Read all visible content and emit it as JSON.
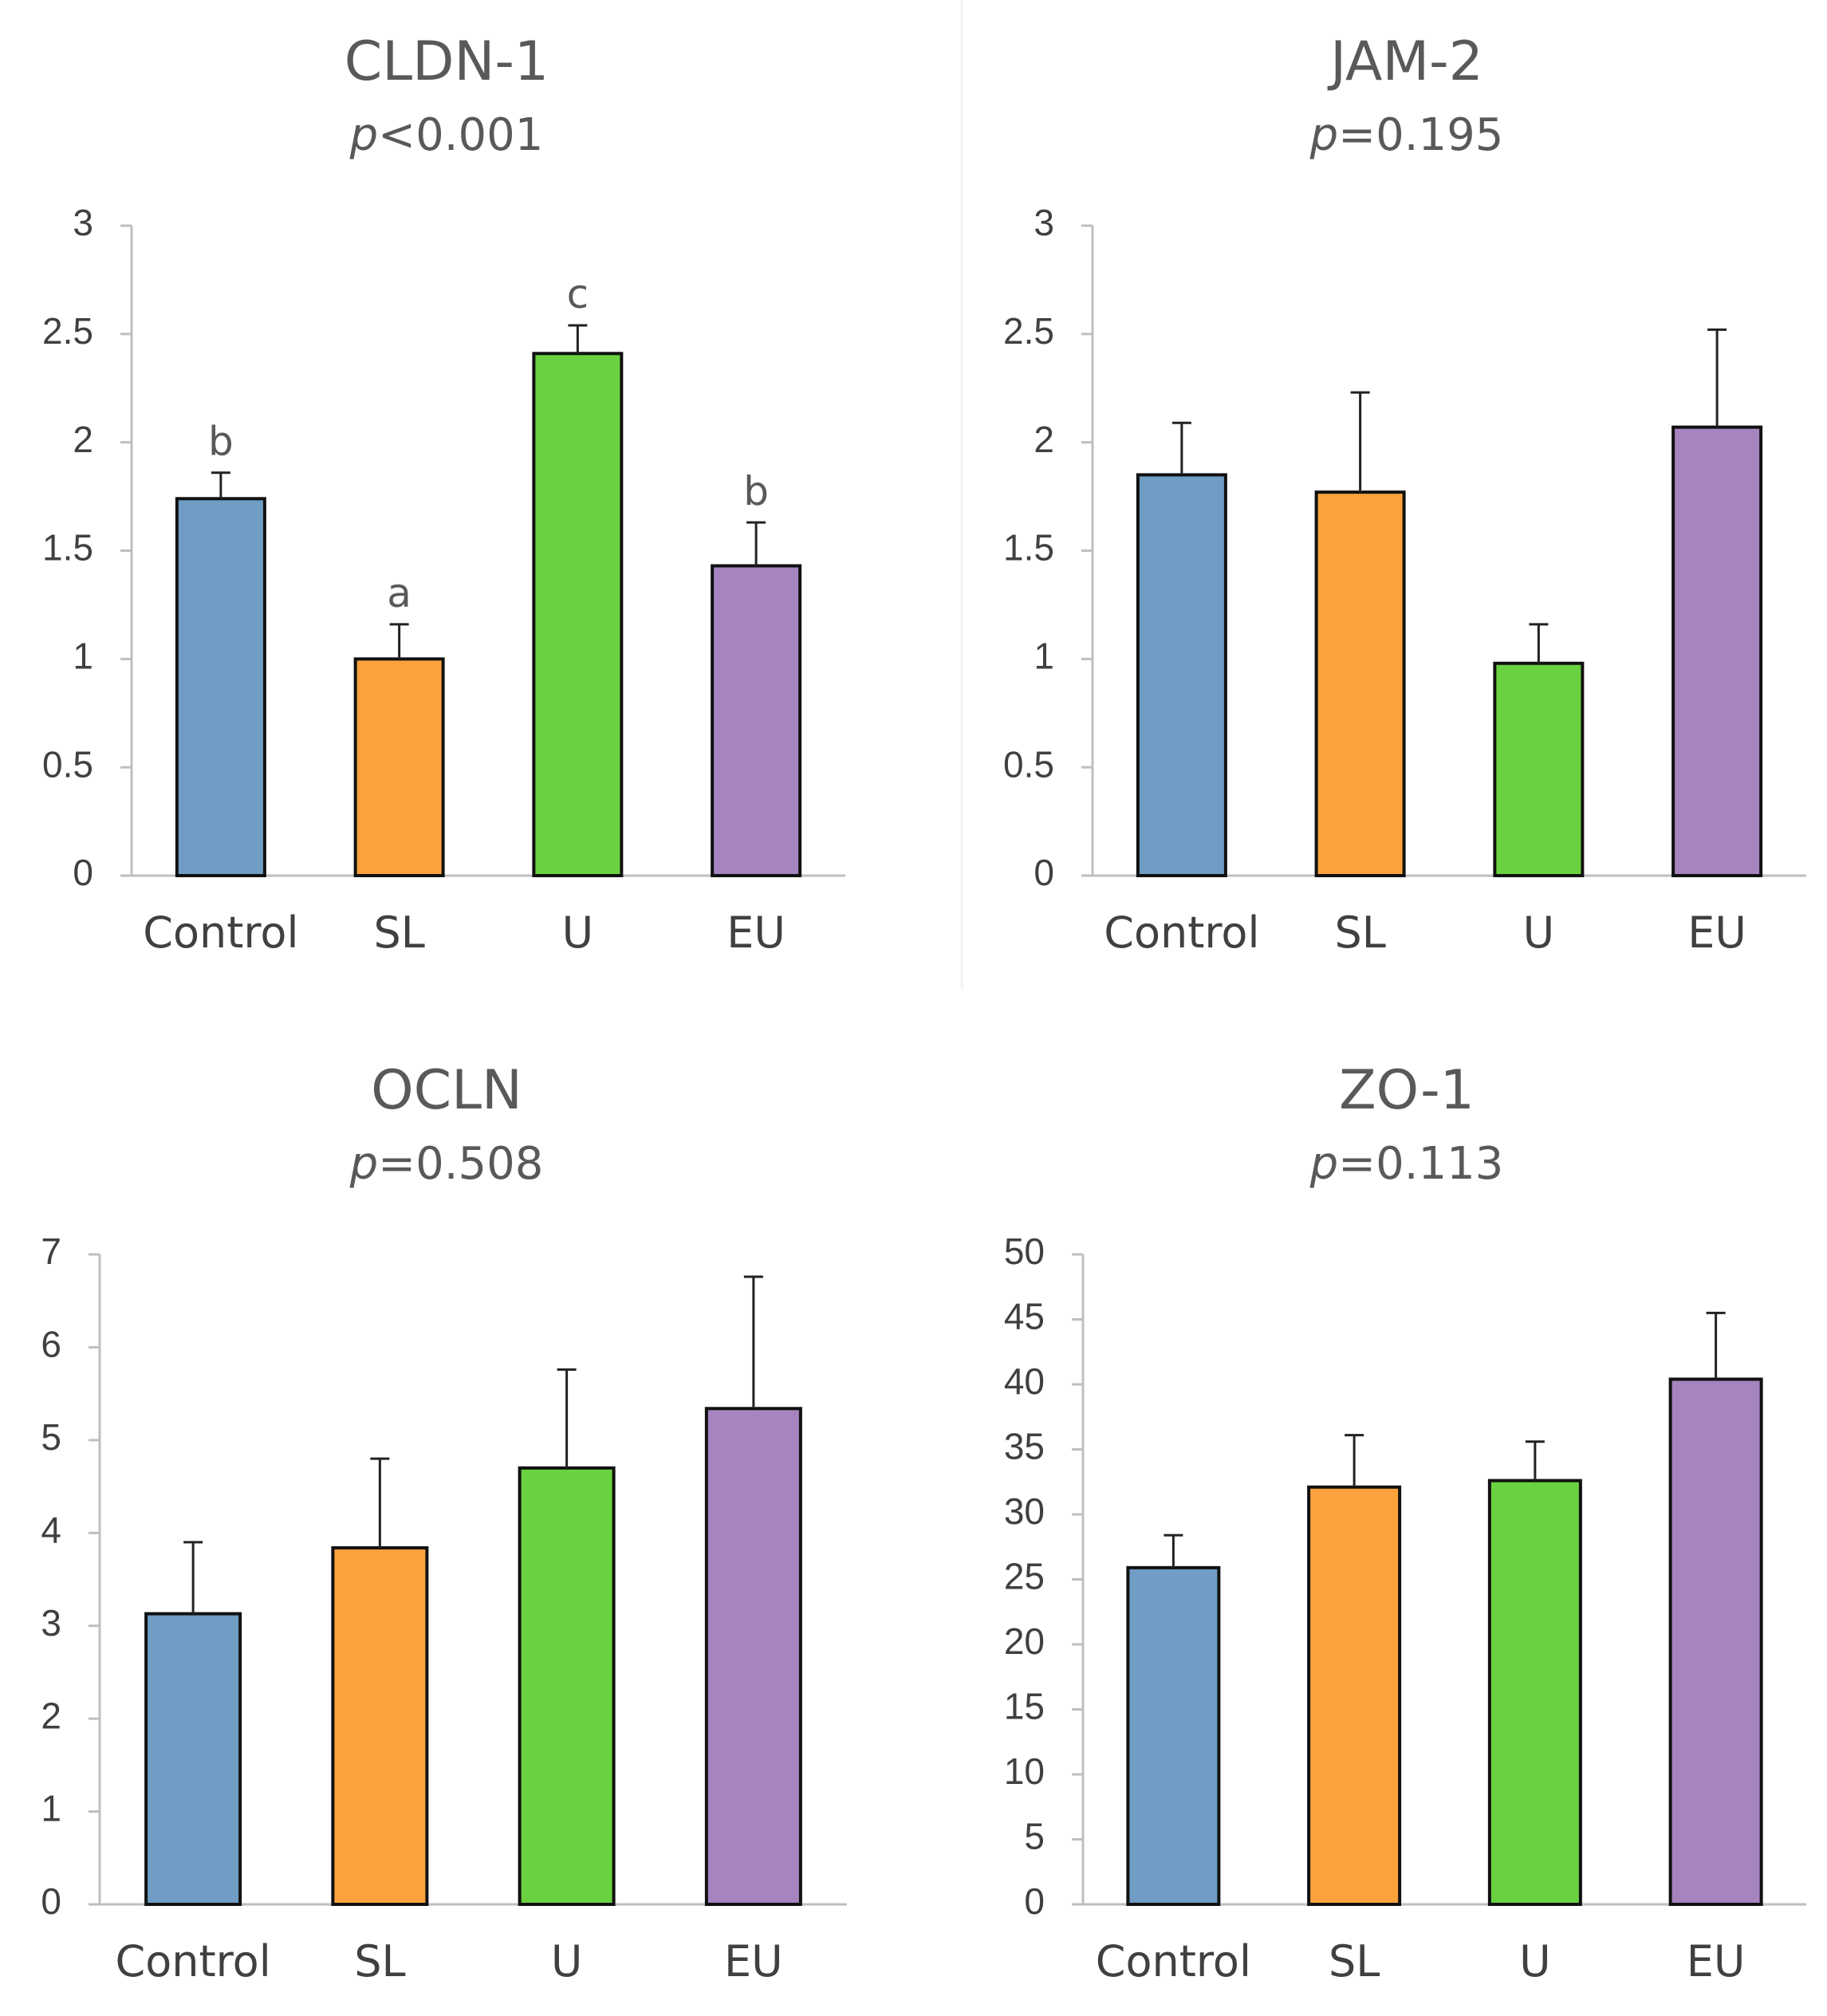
{
  "colors": {
    "Control": "#6f9dc3",
    "SL": "#fba23c",
    "U": "#6ad240",
    "EU": "#a684c0",
    "axis": "#bfbfbf",
    "text": "#404040"
  },
  "chart_data": [
    {
      "type": "bar",
      "title": "CLDN-1",
      "p_prefix": "p",
      "p_value": "<0.001",
      "categories": [
        "Control",
        "SL",
        "U",
        "EU"
      ],
      "values": [
        1.74,
        1.0,
        2.41,
        1.43
      ],
      "errors": [
        0.12,
        0.16,
        0.13,
        0.2
      ],
      "letters": [
        "b",
        "a",
        "c",
        "b"
      ],
      "ylim": [
        0,
        3
      ],
      "yticks": [
        0,
        0.5,
        1,
        1.5,
        2,
        2.5,
        3
      ],
      "ytick_labels": [
        "0",
        "0.5",
        "1",
        "1.5",
        "2",
        "2.5",
        "3"
      ],
      "xlabel": "",
      "ylabel": ""
    },
    {
      "type": "bar",
      "title": "JAM-2",
      "p_prefix": "p",
      "p_value": "=0.195",
      "categories": [
        "Control",
        "SL",
        "U",
        "EU"
      ],
      "values": [
        1.85,
        1.77,
        0.98,
        2.07
      ],
      "errors": [
        0.24,
        0.46,
        0.18,
        0.45
      ],
      "letters": [
        "",
        "",
        "",
        ""
      ],
      "ylim": [
        0,
        3
      ],
      "yticks": [
        0,
        0.5,
        1,
        1.5,
        2,
        2.5,
        3
      ],
      "ytick_labels": [
        "0",
        "0.5",
        "1",
        "1.5",
        "2",
        "2.5",
        "3"
      ],
      "xlabel": "",
      "ylabel": ""
    },
    {
      "type": "bar",
      "title": "OCLN",
      "p_prefix": "p",
      "p_value": "=0.508",
      "categories": [
        "Control",
        "SL",
        "U",
        "EU"
      ],
      "values": [
        3.13,
        3.84,
        4.7,
        5.34
      ],
      "errors": [
        0.77,
        0.96,
        1.06,
        1.42
      ],
      "letters": [
        "",
        "",
        "",
        ""
      ],
      "ylim": [
        0,
        7
      ],
      "yticks": [
        0,
        1,
        2,
        3,
        4,
        5,
        6,
        7
      ],
      "ytick_labels": [
        "0",
        "1",
        "2",
        "3",
        "4",
        "5",
        "6",
        "7"
      ],
      "xlabel": "",
      "ylabel": ""
    },
    {
      "type": "bar",
      "title": "ZO-1",
      "p_prefix": "p",
      "p_value": "=0.113",
      "categories": [
        "Control",
        "SL",
        "U",
        "EU"
      ],
      "values": [
        25.9,
        32.1,
        32.6,
        40.4
      ],
      "errors": [
        2.5,
        4.0,
        3.0,
        5.1
      ],
      "letters": [
        "",
        "",
        "",
        ""
      ],
      "ylim": [
        0,
        50
      ],
      "yticks": [
        0,
        5,
        10,
        15,
        20,
        25,
        30,
        35,
        40,
        45,
        50
      ],
      "ytick_labels": [
        "0",
        "5",
        "10",
        "15",
        "20",
        "25",
        "30",
        "35",
        "40",
        "45",
        "50"
      ],
      "xlabel": "",
      "ylabel": ""
    }
  ]
}
